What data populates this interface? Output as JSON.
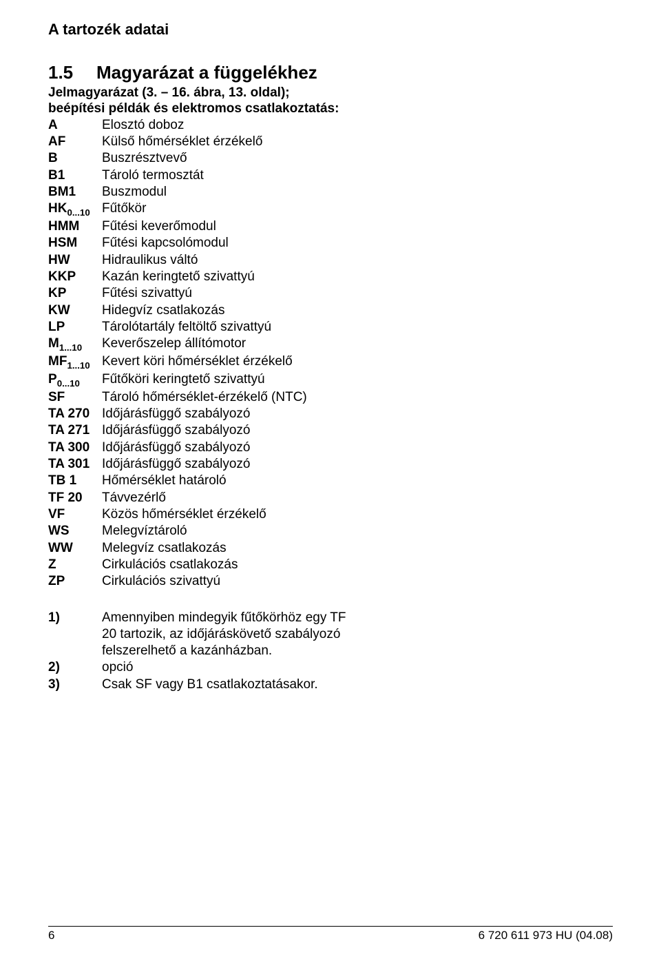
{
  "header": {
    "title": "A tartozék adatai"
  },
  "section": {
    "number": "1.5",
    "title": "Magyarázat a függelékhez",
    "subtitle": "Jelmagyarázat (3. – 16. ábra, 13. oldal);",
    "intro": "beépítési példák és elektromos csatlakoztatás:"
  },
  "legend": [
    {
      "key": "A",
      "val": "Elosztó doboz"
    },
    {
      "key": "AF",
      "val": "Külső hőmérséklet érzékelő"
    },
    {
      "key": "B",
      "val": "Buszrésztvevő"
    },
    {
      "key": "B1",
      "val": "Tároló termosztát"
    },
    {
      "key": "BM1",
      "val": "Buszmodul"
    },
    {
      "key": "HK",
      "sub": "0...10",
      "val": "Fűtőkör"
    },
    {
      "key": "HMM",
      "val": "Fűtési keverőmodul"
    },
    {
      "key": "HSM",
      "val": "Fűtési kapcsolómodul"
    },
    {
      "key": "HW",
      "val": "Hidraulikus váltó"
    },
    {
      "key": "KKP",
      "val": "Kazán keringtető szivattyú"
    },
    {
      "key": "KP",
      "val": "Fűtési szivattyú"
    },
    {
      "key": "KW",
      "val": "Hidegvíz csatlakozás"
    },
    {
      "key": "LP",
      "val": "Tárolótartály feltöltő szivattyú"
    },
    {
      "key": "M",
      "sub": "1...10",
      "val": "Keverőszelep állítómotor"
    },
    {
      "key": "MF",
      "sub": "1...10",
      "val": "Kevert köri hőmérséklet érzékelő"
    },
    {
      "key": "P",
      "sub": "0...10",
      "val": "Fűtőköri keringtető szivattyú"
    },
    {
      "key": "SF",
      "val": "Tároló hőmérséklet-érzékelő (NTC)"
    },
    {
      "key": "TA 270",
      "val": "Időjárásfüggő szabályozó"
    },
    {
      "key": "TA 271",
      "val": "Időjárásfüggő szabályozó"
    },
    {
      "key": "TA 300",
      "val": "Időjárásfüggő szabályozó"
    },
    {
      "key": "TA 301",
      "val": "Időjárásfüggő szabályozó"
    },
    {
      "key": "TB 1",
      "val": "Hőmérséklet határoló"
    },
    {
      "key": "TF 20",
      "val": "Távvezérlő"
    },
    {
      "key": "VF",
      "val": "Közös hőmérséklet érzékelő"
    },
    {
      "key": "WS",
      "val": "Melegvíztároló"
    },
    {
      "key": "WW",
      "val": "Melegvíz csatlakozás"
    },
    {
      "key": "Z",
      "val": "Cirkulációs csatlakozás"
    },
    {
      "key": "ZP",
      "val": "Cirkulációs szivattyú"
    }
  ],
  "notes": [
    {
      "key": "1)",
      "val": "Amennyiben mindegyik fűtőkörhöz egy TF 20 tartozik, az időjáráskövető szabályozó felszerelhető a kazánházban."
    },
    {
      "key": "2)",
      "val": "opció"
    },
    {
      "key": "3)",
      "val": "Csak SF vagy B1 csatlakoztatásakor."
    }
  ],
  "footer": {
    "page": "6",
    "docid": "6 720 611 973 HU (04.08)"
  }
}
